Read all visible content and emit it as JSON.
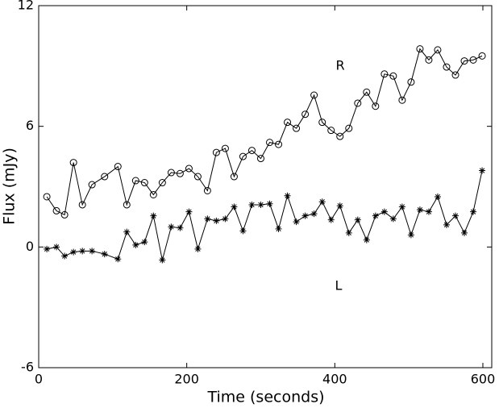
{
  "chart_data": {
    "type": "line",
    "xlabel": "Time (seconds)",
    "ylabel": "Flux (mJy)",
    "annotations": [
      "R",
      "L"
    ],
    "x": [
      11,
      24,
      35,
      47,
      59,
      72,
      89,
      107,
      119,
      131,
      143,
      155,
      167,
      179,
      191,
      203,
      215,
      228,
      240,
      252,
      264,
      276,
      288,
      300,
      312,
      324,
      336,
      348,
      360,
      372,
      383,
      395,
      407,
      419,
      431,
      443,
      455,
      467,
      479,
      491,
      503,
      515,
      527,
      539,
      551,
      563,
      575,
      587,
      599
    ],
    "series": [
      {
        "name": "R",
        "color": "#000000",
        "marker": "circle",
        "values": [
          2.5,
          1.8,
          1.6,
          4.2,
          2.1,
          3.1,
          3.5,
          4.0,
          2.1,
          3.3,
          3.2,
          2.6,
          3.2,
          3.7,
          3.65,
          3.9,
          3.5,
          2.8,
          4.7,
          4.9,
          3.5,
          4.5,
          4.8,
          4.4,
          5.2,
          5.1,
          6.2,
          5.9,
          6.6,
          7.55,
          6.2,
          5.8,
          5.5,
          5.9,
          7.15,
          7.7,
          7.0,
          8.6,
          8.5,
          7.3,
          8.2,
          9.85,
          9.3,
          9.8,
          8.95,
          8.55,
          9.25,
          9.3,
          9.5
        ]
      },
      {
        "name": "L",
        "color": "#000000",
        "marker": "star",
        "values": [
          -0.1,
          0.0,
          -0.45,
          -0.25,
          -0.2,
          -0.2,
          -0.35,
          -0.6,
          0.75,
          0.1,
          0.25,
          1.55,
          -0.65,
          1.0,
          0.95,
          1.75,
          -0.1,
          1.4,
          1.3,
          1.4,
          2.0,
          0.8,
          2.1,
          2.1,
          2.15,
          0.9,
          2.55,
          1.25,
          1.55,
          1.65,
          2.25,
          1.35,
          2.05,
          0.7,
          1.35,
          0.35,
          1.55,
          1.75,
          1.4,
          2.0,
          0.6,
          1.85,
          1.75,
          2.5,
          1.1,
          1.55,
          0.7,
          1.75,
          3.8
        ]
      }
    ],
    "xlim": [
      0,
      612
    ],
    "xticks": [
      0,
      200,
      400,
      600
    ],
    "ylim": [
      -6,
      12
    ],
    "yticks": [
      -6,
      0,
      6,
      12
    ]
  }
}
